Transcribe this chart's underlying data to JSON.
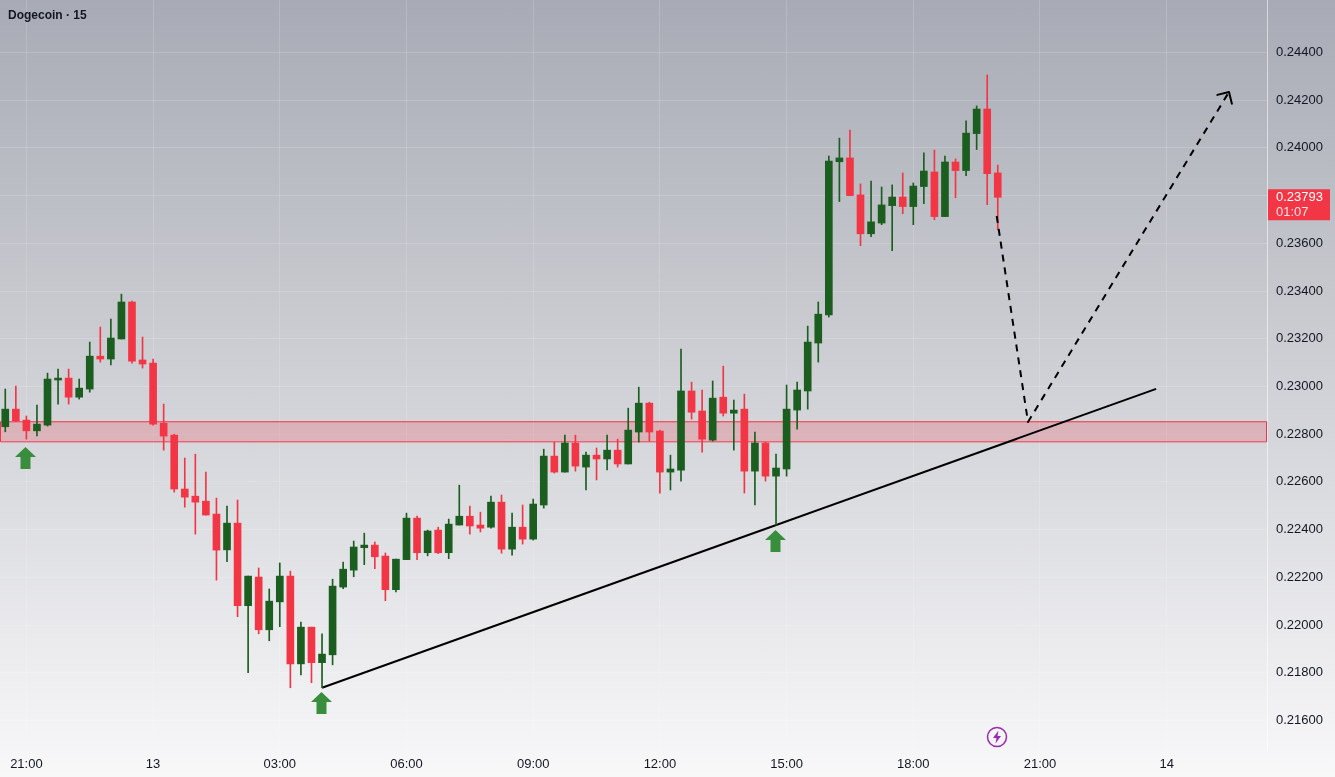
{
  "chart_data": {
    "type": "candlestick",
    "title": "Dogecoin · 15",
    "categories": [
      null,
      null,
      "21:00",
      null,
      null,
      null,
      null,
      null,
      null,
      null,
      null,
      null,
      null,
      null,
      "13",
      null,
      null,
      null,
      null,
      null,
      null,
      null,
      null,
      null,
      null,
      null,
      "03:00",
      null,
      null,
      null,
      null,
      null,
      null,
      null,
      null,
      null,
      null,
      null,
      "06:00",
      null,
      null,
      null,
      null,
      null,
      null,
      null,
      null,
      null,
      null,
      null,
      "09:00",
      null,
      null,
      null,
      null,
      null,
      null,
      null,
      null,
      null,
      null,
      null,
      "12:00",
      null,
      null,
      null,
      null,
      null,
      null,
      null,
      null,
      null,
      null,
      null,
      "15:00",
      null,
      null,
      null,
      null,
      null,
      null,
      null,
      null,
      null,
      null,
      null,
      "18:00",
      null,
      null,
      null,
      null,
      null,
      null,
      null,
      null,
      null,
      null,
      null,
      "21:00",
      null,
      null,
      null,
      null,
      null,
      null,
      null,
      null,
      null,
      null,
      null,
      "14",
      null,
      null,
      null,
      null,
      null,
      null,
      null,
      null,
      null
    ],
    "ylim": [
      0.21476,
      0.2462
    ],
    "yticks": [
      {
        "value": 0.216,
        "label": "0.21600"
      },
      {
        "value": 0.218,
        "label": "0.21800"
      },
      {
        "value": 0.22,
        "label": "0.22000"
      },
      {
        "value": 0.222,
        "label": "0.22200"
      },
      {
        "value": 0.224,
        "label": "0.22400"
      },
      {
        "value": 0.226,
        "label": "0.22600"
      },
      {
        "value": 0.228,
        "label": "0.22800"
      },
      {
        "value": 0.23,
        "label": "0.23000"
      },
      {
        "value": 0.232,
        "label": "0.23200"
      },
      {
        "value": 0.234,
        "label": "0.23400"
      },
      {
        "value": 0.236,
        "label": "0.23600"
      },
      {
        "value": 0.238,
        "label": null
      },
      {
        "value": 0.24,
        "label": "0.24000"
      },
      {
        "value": 0.242,
        "label": "0.24200"
      },
      {
        "value": 0.244,
        "label": "0.24400"
      }
    ],
    "grid": true,
    "bands": [
      {
        "axis": "y",
        "from": 0.2277,
        "to": 0.22854,
        "color": "#f23645"
      }
    ],
    "annotations": [
      "0.23793",
      "01:07"
    ],
    "series": [
      {
        "ohlc": [
          [
            0.22831,
            0.22989,
            0.2281,
            0.22905
          ],
          [
            0.22905,
            0.23002,
            0.22852,
            0.22856
          ],
          [
            0.22859,
            0.22876,
            0.22779,
            0.22814
          ],
          [
            0.22814,
            0.22922,
            0.22793,
            0.22842
          ],
          [
            0.22838,
            0.23056,
            0.22834,
            0.23031
          ],
          [
            0.23027,
            0.23073,
            0.22926,
            0.23035
          ],
          [
            0.23035,
            0.23073,
            0.22926,
            0.22955
          ],
          [
            0.22955,
            0.23031,
            0.22947,
            0.22993
          ],
          [
            0.22989,
            0.23186,
            0.22976,
            0.23127
          ],
          [
            0.23127,
            0.23249,
            0.23102,
            0.23115
          ],
          [
            0.23115,
            0.23282,
            0.2309,
            0.23203
          ],
          [
            0.23199,
            0.23387,
            0.23199,
            0.23354
          ],
          [
            0.23354,
            0.23358,
            0.23098,
            0.23106
          ],
          [
            0.23111,
            0.23207,
            0.23077,
            0.23094
          ],
          [
            0.23098,
            0.23115,
            0.22838,
            0.22842
          ],
          [
            0.22846,
            0.22926,
            0.22733,
            0.22792
          ],
          [
            0.22796,
            0.228,
            0.22557,
            0.2257
          ],
          [
            0.2257,
            0.227,
            0.22494,
            0.22536
          ],
          [
            0.2254,
            0.22716,
            0.22381,
            0.22515
          ],
          [
            0.22519,
            0.22641,
            0.2246,
            0.22461
          ],
          [
            0.22465,
            0.22532,
            0.22188,
            0.22314
          ],
          [
            0.22315,
            0.22499,
            0.22265,
            0.22427
          ],
          [
            0.22427,
            0.22524,
            0.22035,
            0.22081
          ],
          [
            0.22081,
            0.22205,
            0.218,
            0.22205
          ],
          [
            0.22201,
            0.22239,
            0.21963,
            0.2198
          ],
          [
            0.2198,
            0.22151,
            0.21934,
            0.221
          ],
          [
            0.22097,
            0.2226,
            0.21993,
            0.22205
          ],
          [
            0.22205,
            0.22226,
            0.21737,
            0.21837
          ],
          [
            0.21837,
            0.22012,
            0.21791,
            0.21991
          ],
          [
            0.21991,
            0.21991,
            0.21758,
            0.21842
          ],
          [
            0.21842,
            0.21963,
            0.21737,
            0.21878
          ],
          [
            0.21875,
            0.22192,
            0.21833,
            0.22163
          ],
          [
            0.22159,
            0.22264,
            0.22152,
            0.22234
          ],
          [
            0.2223,
            0.22352,
            0.22202,
            0.22327
          ],
          [
            0.22324,
            0.22385,
            0.22253,
            0.22335
          ],
          [
            0.22335,
            0.22348,
            0.22236,
            0.22286
          ],
          [
            0.22289,
            0.22302,
            0.22102,
            0.22148
          ],
          [
            0.22148,
            0.22276,
            0.22139,
            0.22276
          ],
          [
            0.22274,
            0.22469,
            0.22274,
            0.22448
          ],
          [
            0.22448,
            0.22457,
            0.22274,
            0.22303
          ],
          [
            0.22303,
            0.22398,
            0.2229,
            0.22394
          ],
          [
            0.22398,
            0.2241,
            0.22299,
            0.22303
          ],
          [
            0.22303,
            0.22444,
            0.22278,
            0.22423
          ],
          [
            0.22419,
            0.22586,
            0.22419,
            0.22456
          ],
          [
            0.22456,
            0.22498,
            0.22381,
            0.22415
          ],
          [
            0.22419,
            0.22473,
            0.2239,
            0.22406
          ],
          [
            0.2241,
            0.2254,
            0.22406,
            0.22515
          ],
          [
            0.22515,
            0.22545,
            0.22301,
            0.22318
          ],
          [
            0.22318,
            0.22469,
            0.22293,
            0.2241
          ],
          [
            0.2241,
            0.22503,
            0.22339,
            0.2236
          ],
          [
            0.2236,
            0.22528,
            0.22356,
            0.22507
          ],
          [
            0.22503,
            0.22737,
            0.2249,
            0.22708
          ],
          [
            0.22708,
            0.22767,
            0.22637,
            0.22641
          ],
          [
            0.22641,
            0.22796,
            0.22641,
            0.22763
          ],
          [
            0.22763,
            0.22796,
            0.22645,
            0.22666
          ],
          [
            0.22662,
            0.22725,
            0.22566,
            0.22712
          ],
          [
            0.22712,
            0.22742,
            0.22608,
            0.22696
          ],
          [
            0.22696,
            0.22796,
            0.2265,
            0.22733
          ],
          [
            0.22733,
            0.22779,
            0.22662,
            0.22675
          ],
          [
            0.22675,
            0.22909,
            0.22675,
            0.22817
          ],
          [
            0.22809,
            0.22997,
            0.22767,
            0.2293
          ],
          [
            0.2293,
            0.22934,
            0.22771,
            0.22809
          ],
          [
            0.22813,
            0.22817,
            0.22553,
            0.22641
          ],
          [
            0.22641,
            0.22712,
            0.22566,
            0.22654
          ],
          [
            0.22649,
            0.23157,
            0.22603,
            0.22981
          ],
          [
            0.22981,
            0.23018,
            0.22863,
            0.22892
          ],
          [
            0.22897,
            0.22985,
            0.22725,
            0.22779
          ],
          [
            0.22775,
            0.23023,
            0.22771,
            0.22951
          ],
          [
            0.22955,
            0.23085,
            0.22876,
            0.22888
          ],
          [
            0.22888,
            0.22943,
            0.22733,
            0.22901
          ],
          [
            0.22905,
            0.22968,
            0.22553,
            0.22645
          ],
          [
            0.22645,
            0.22809,
            0.22503,
            0.22763
          ],
          [
            0.22763,
            0.22767,
            0.22603,
            0.22624
          ],
          [
            0.22624,
            0.22716,
            0.22419,
            0.22658
          ],
          [
            0.22654,
            0.23006,
            0.22624,
            0.22905
          ],
          [
            0.22901,
            0.23018,
            0.22821,
            0.22985
          ],
          [
            0.22981,
            0.23253,
            0.22905,
            0.23186
          ],
          [
            0.23182,
            0.23354,
            0.23102,
            0.23303
          ],
          [
            0.233,
            0.23966,
            0.23291,
            0.23945
          ],
          [
            0.23942,
            0.24041,
            0.23775,
            0.23958
          ],
          [
            0.23958,
            0.24075,
            0.238,
            0.238
          ],
          [
            0.23803,
            0.23849,
            0.2359,
            0.2364
          ],
          [
            0.2364,
            0.23861,
            0.23628,
            0.2369
          ],
          [
            0.23685,
            0.23836,
            0.23678,
            0.23761
          ],
          [
            0.23758,
            0.23845,
            0.23569,
            0.23794
          ],
          [
            0.23794,
            0.23895,
            0.23724,
            0.23754
          ],
          [
            0.23754,
            0.23853,
            0.23678,
            0.2384
          ],
          [
            0.23838,
            0.23979,
            0.23766,
            0.23903
          ],
          [
            0.23899,
            0.23991,
            0.23699,
            0.23712
          ],
          [
            0.23712,
            0.23966,
            0.23712,
            0.23941
          ],
          [
            0.23941,
            0.23954,
            0.23791,
            0.23905
          ],
          [
            0.23905,
            0.24113,
            0.23884,
            0.24062
          ],
          [
            0.2406,
            0.24176,
            0.23993,
            0.24163
          ],
          [
            0.24163,
            0.24306,
            0.23762,
            0.23892
          ],
          [
            0.23895,
            0.23928,
            0.23657,
            0.23793
          ],
          null,
          null,
          null,
          null,
          null,
          null,
          null,
          null,
          null,
          null,
          null,
          null,
          null,
          null,
          null,
          null,
          null,
          null,
          null,
          null,
          null,
          null,
          null,
          null,
          null
        ],
        "colors": [
          "#1b5e20",
          "#f23645",
          "#f23645",
          "#1b5e20",
          "#1b5e20",
          "#1b5e20",
          "#f23645",
          "#1b5e20",
          "#1b5e20",
          "#f23645",
          "#1b5e20",
          "#1b5e20",
          "#f23645",
          "#f23645",
          "#f23645",
          "#f23645",
          "#f23645",
          "#f23645",
          "#f23645",
          "#f23645",
          "#f23645",
          "#1b5e20",
          "#f23645",
          "#1b5e20",
          "#f23645",
          "#1b5e20",
          "#1b5e20",
          "#f23645",
          "#1b5e20",
          "#f23645",
          "#1b5e20",
          "#1b5e20",
          "#1b5e20",
          "#1b5e20",
          "#1b5e20",
          "#f23645",
          "#f23645",
          "#1b5e20",
          "#1b5e20",
          "#f23645",
          "#1b5e20",
          "#f23645",
          "#1b5e20",
          "#1b5e20",
          "#f23645",
          "#f23645",
          "#1b5e20",
          "#f23645",
          "#1b5e20",
          "#f23645",
          "#1b5e20",
          "#1b5e20",
          "#f23645",
          "#1b5e20",
          "#f23645",
          "#1b5e20",
          "#f23645",
          "#1b5e20",
          "#f23645",
          "#1b5e20",
          "#1b5e20",
          "#f23645",
          "#f23645",
          "#1b5e20",
          "#1b5e20",
          "#f23645",
          "#f23645",
          "#1b5e20",
          "#f23645",
          "#1b5e20",
          "#f23645",
          "#1b5e20",
          "#f23645",
          "#1b5e20",
          "#1b5e20",
          "#1b5e20",
          "#1b5e20",
          "#1b5e20",
          "#1b5e20",
          "#1b5e20",
          "#f23645",
          "#f23645",
          "#1b5e20",
          "#1b5e20",
          "#1b5e20",
          "#f23645",
          "#1b5e20",
          "#1b5e20",
          "#f23645",
          "#1b5e20",
          "#f23645",
          "#1b5e20",
          "#1b5e20",
          "#f23645",
          "#f23645",
          null,
          null,
          null,
          null,
          null,
          null,
          null,
          null,
          null,
          null,
          null,
          null,
          null,
          null,
          null,
          null,
          null,
          null,
          null,
          null,
          null,
          null,
          null,
          null,
          null
        ]
      },
      {
        "type": "line",
        "values": [
          null,
          null,
          null,
          null,
          null,
          null,
          null,
          null,
          null,
          null,
          null,
          null,
          null,
          null,
          null,
          null,
          null,
          null,
          null,
          null,
          null,
          null,
          null,
          null,
          null,
          null,
          null,
          null,
          null,
          null,
          0.21737,
          null,
          null,
          null,
          null,
          null,
          null,
          null,
          null,
          null,
          null,
          null,
          null,
          null,
          null,
          null,
          null,
          null,
          null,
          null,
          null,
          null,
          null,
          null,
          null,
          null,
          null,
          null,
          null,
          null,
          null,
          null,
          null,
          null,
          null,
          null,
          null,
          null,
          null,
          null,
          null,
          null,
          null,
          null,
          null,
          null,
          null,
          null,
          null,
          null,
          null,
          null,
          null,
          null,
          null,
          null,
          null,
          null,
          null,
          null,
          null,
          null,
          null,
          null,
          null,
          null,
          null,
          null,
          null,
          null,
          null,
          null,
          null,
          null,
          null,
          null,
          null,
          null,
          null,
          0.2299,
          null,
          null,
          null,
          null,
          null,
          null,
          null,
          null,
          null,
          null
        ],
        "color": "#000000",
        "line_style": "solid",
        "marker": "none"
      }
    ]
  }
}
